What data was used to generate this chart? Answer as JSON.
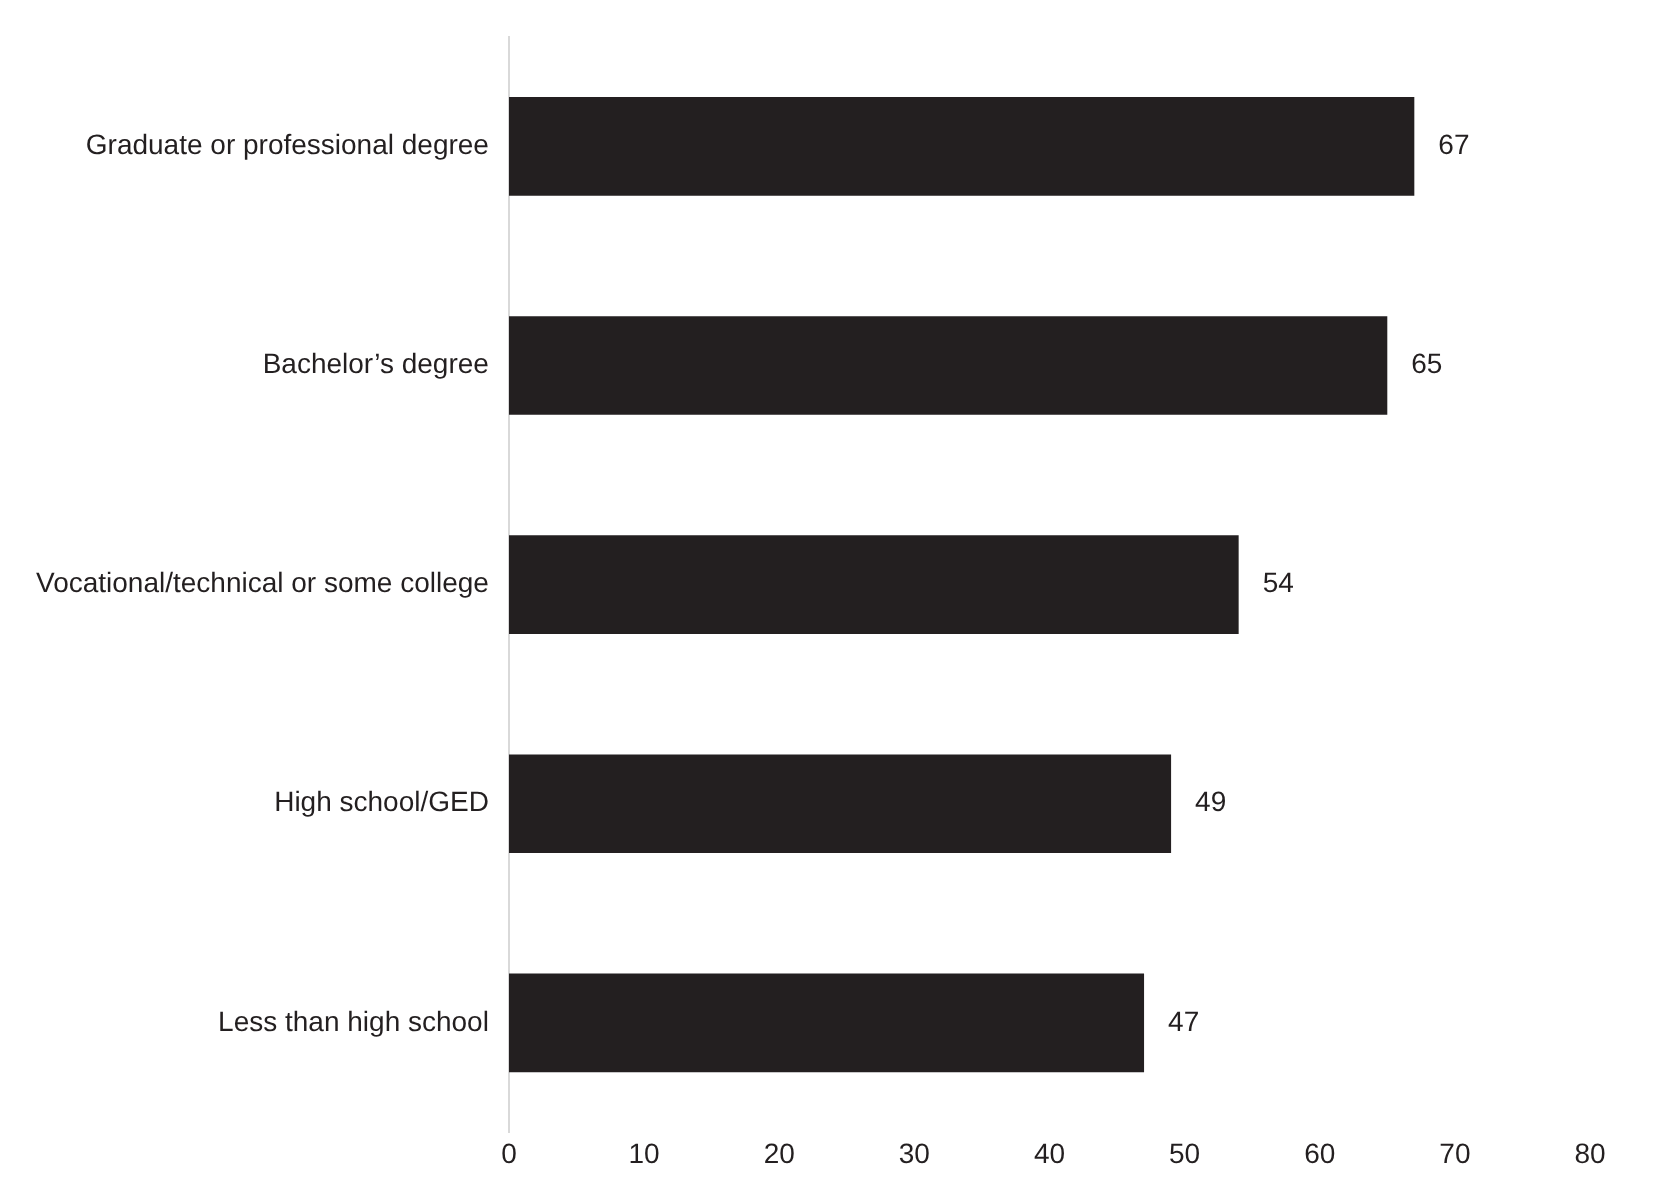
{
  "chart_data": {
    "type": "bar",
    "orientation": "horizontal",
    "categories": [
      "Graduate or professional degree",
      "Bachelor’s degree",
      "Vocational/technical or some college",
      "High school/GED",
      "Less than high school"
    ],
    "values": [
      67,
      65,
      54,
      49,
      47
    ],
    "color": "#231f20",
    "xlim": [
      0,
      80
    ],
    "xticks": [
      0,
      10,
      20,
      30,
      40,
      50,
      60,
      70,
      80
    ],
    "grid": false,
    "legend": false,
    "data_labels": true
  }
}
